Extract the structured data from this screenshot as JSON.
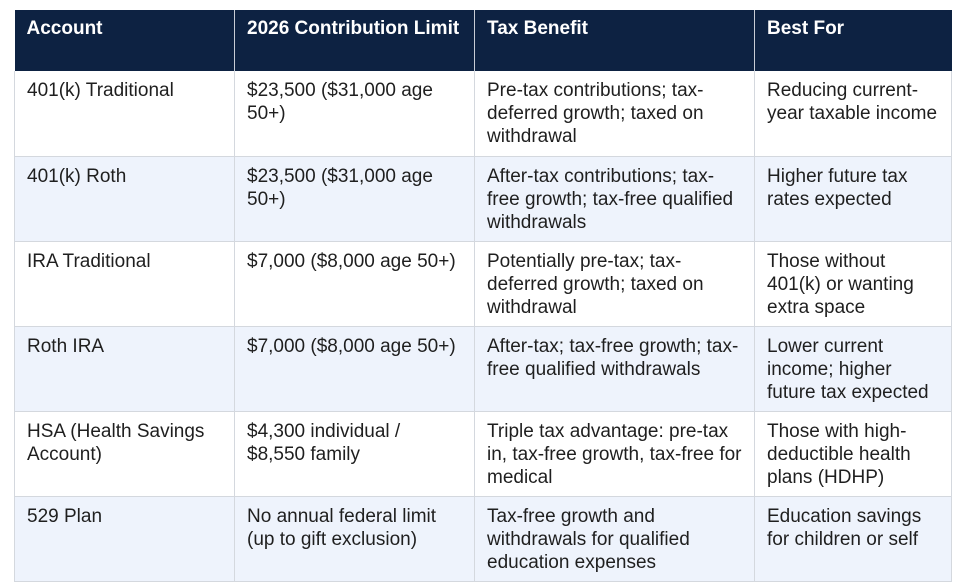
{
  "table": {
    "headers": [
      "Account",
      "2026 Contribution Limit",
      "Tax Benefit",
      "Best For"
    ],
    "rows": [
      [
        "401(k) Traditional",
        "$23,500 ($31,000 age 50+)",
        "Pre-tax contributions; tax-deferred growth; taxed on withdrawal",
        "Reducing current-year taxable income"
      ],
      [
        "401(k) Roth",
        "$23,500 ($31,000 age 50+)",
        "After-tax contributions; tax-free growth; tax-free qualified withdrawals",
        "Higher future tax rates expected"
      ],
      [
        "IRA Traditional",
        "$7,000 ($8,000 age 50+)",
        "Potentially pre-tax; tax-deferred growth; taxed on withdrawal",
        "Those without 401(k) or wanting extra space"
      ],
      [
        "Roth IRA",
        "$7,000 ($8,000 age 50+)",
        "After-tax; tax-free growth; tax-free qualified withdrawals",
        "Lower current income; higher future tax expected"
      ],
      [
        "HSA (Health Savings Account)",
        "$4,300 individual / $8,550 family",
        "Triple tax advantage: pre-tax in, tax-free growth, tax-free for medical",
        "Those with high-deductible health plans (HDHP)"
      ],
      [
        "529 Plan",
        "No annual federal limit (up to gift exclusion)",
        "Tax-free growth and withdrawals for qualified education expenses",
        "Education savings for children or self"
      ]
    ]
  },
  "colors": {
    "header_bg": "#0d2242",
    "header_text": "#ffffff",
    "alt_row_bg": "#eef3fc",
    "border": "#d4d8de"
  }
}
